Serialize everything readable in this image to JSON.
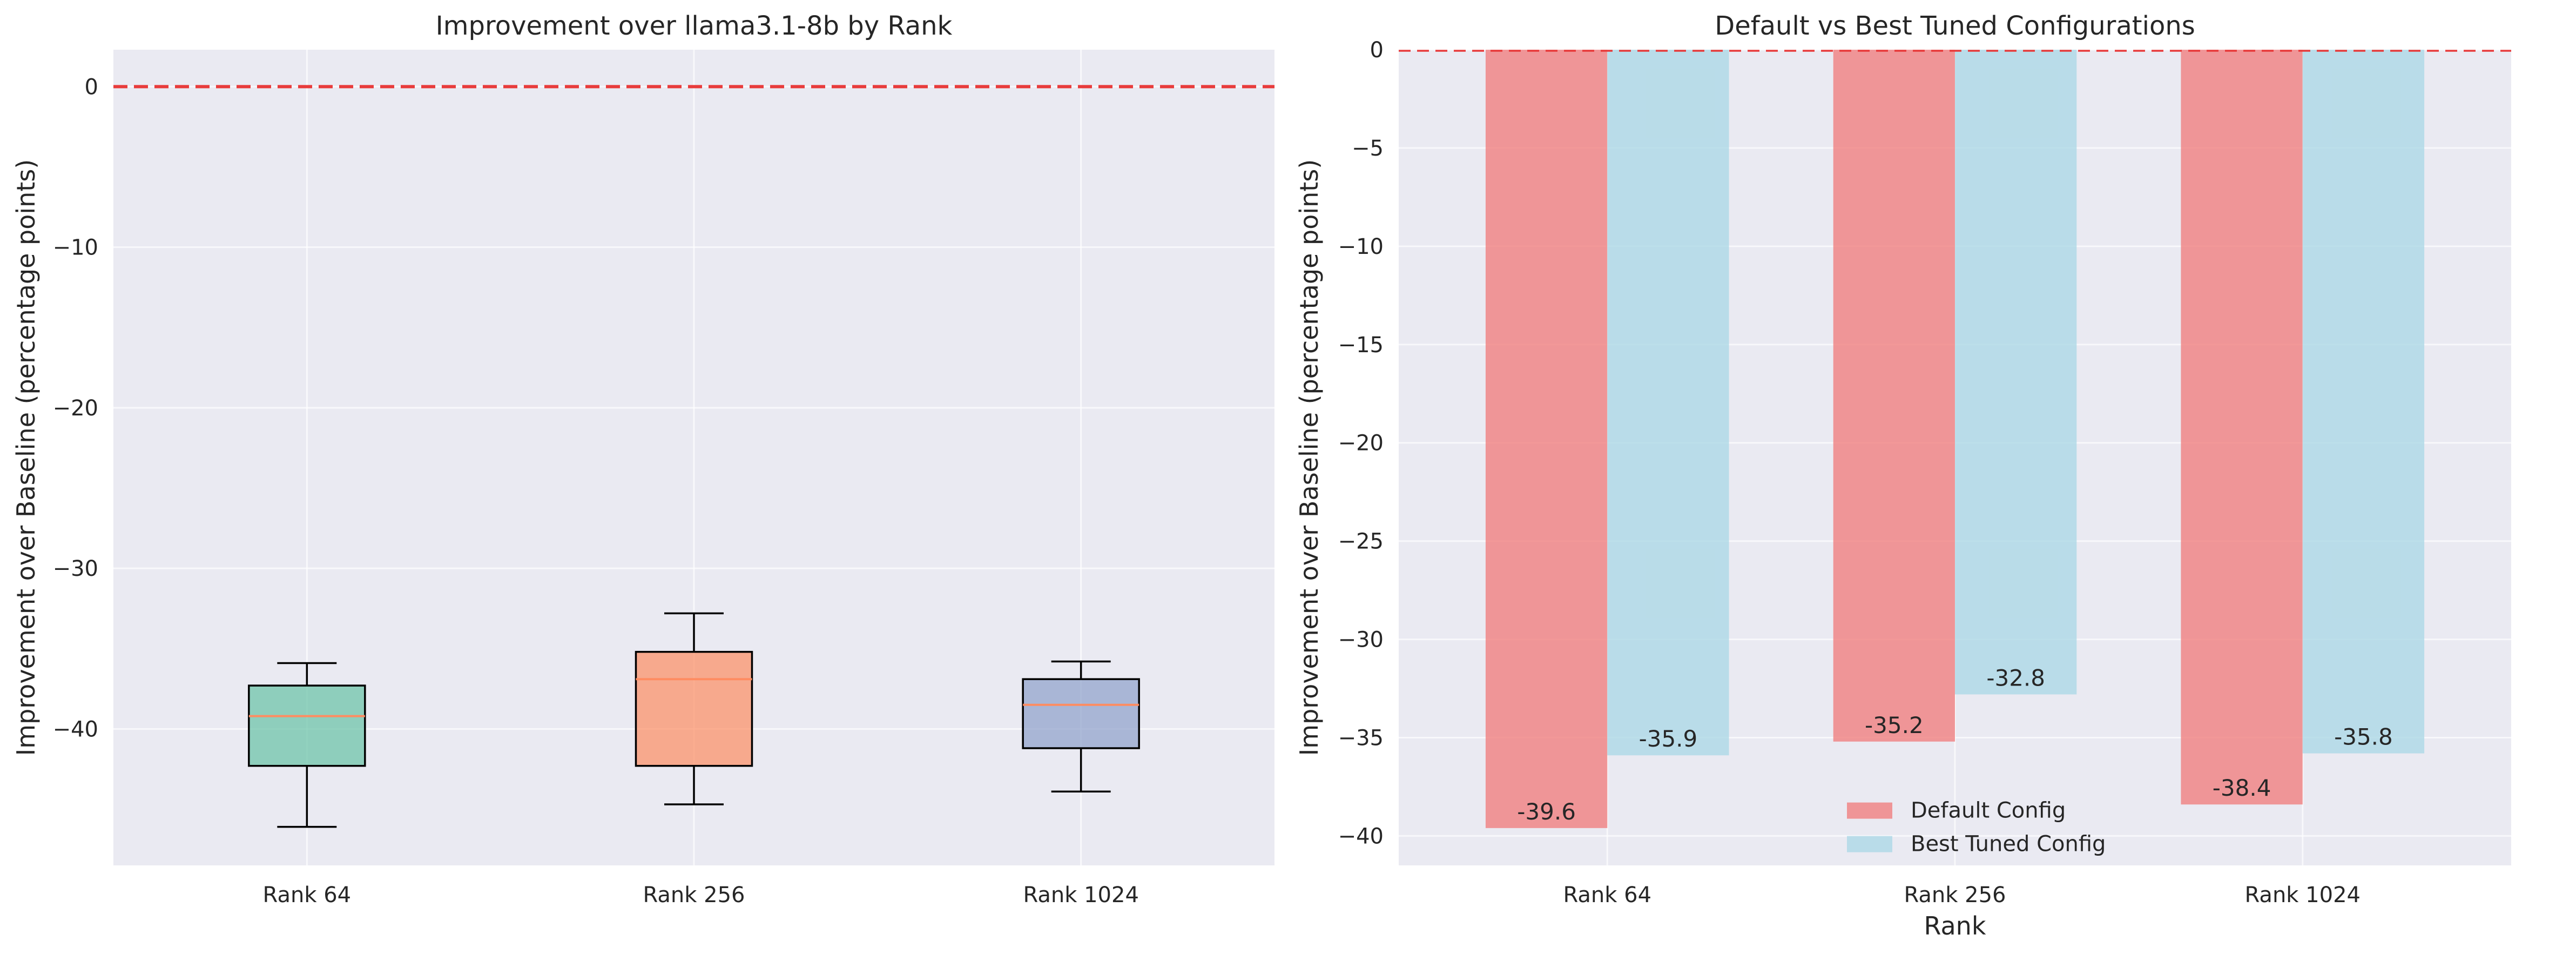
{
  "chart_data": [
    {
      "type": "box",
      "title": "Improvement over llama3.1-8b by Rank",
      "xlabel": "",
      "ylabel": "Improvement over Baseline (percentage points)",
      "categories": [
        "Rank 64",
        "Rank 256",
        "Rank 1024"
      ],
      "boxes": [
        {
          "min": -46.1,
          "q1": -42.3,
          "median": -39.2,
          "q3": -37.3,
          "max": -35.9,
          "color": "#66c2a5"
        },
        {
          "min": -44.7,
          "q1": -42.3,
          "median": -36.9,
          "q3": -35.2,
          "max": -32.8,
          "color": "#fc8d62"
        },
        {
          "min": -43.9,
          "q1": -41.2,
          "median": -38.5,
          "q3": -36.9,
          "max": -35.8,
          "color": "#8da0cb"
        }
      ],
      "median_color": "#ff8c61",
      "ylim": [
        -48.5,
        2.3
      ],
      "yticks": [
        0,
        -10,
        -20,
        -30,
        -40
      ],
      "baseline": 0,
      "baseline_color": "#e83b3b",
      "grid": true
    },
    {
      "type": "bar",
      "title": "Default vs Best Tuned Configurations",
      "xlabel": "Rank",
      "ylabel": "Improvement over Baseline (percentage points)",
      "categories": [
        "Rank 64",
        "Rank 256",
        "Rank 1024"
      ],
      "series": [
        {
          "name": "Default Config",
          "values": [
            -39.6,
            -35.2,
            -38.4
          ],
          "labels": [
            "-39.6",
            "-35.2",
            "-38.4"
          ],
          "color": "#f08080"
        },
        {
          "name": "Best Tuned Config",
          "values": [
            -35.9,
            -32.8,
            -35.8
          ],
          "labels": [
            "-35.9",
            "-32.8",
            "-35.8"
          ],
          "color": "#add8e6"
        }
      ],
      "ylim": [
        -41.5,
        0
      ],
      "yticks": [
        0,
        -5,
        -10,
        -15,
        -20,
        -25,
        -30,
        -35,
        -40
      ],
      "baseline": 0,
      "baseline_color": "#e83b3b",
      "legend": "lower-center",
      "grid": true
    }
  ]
}
